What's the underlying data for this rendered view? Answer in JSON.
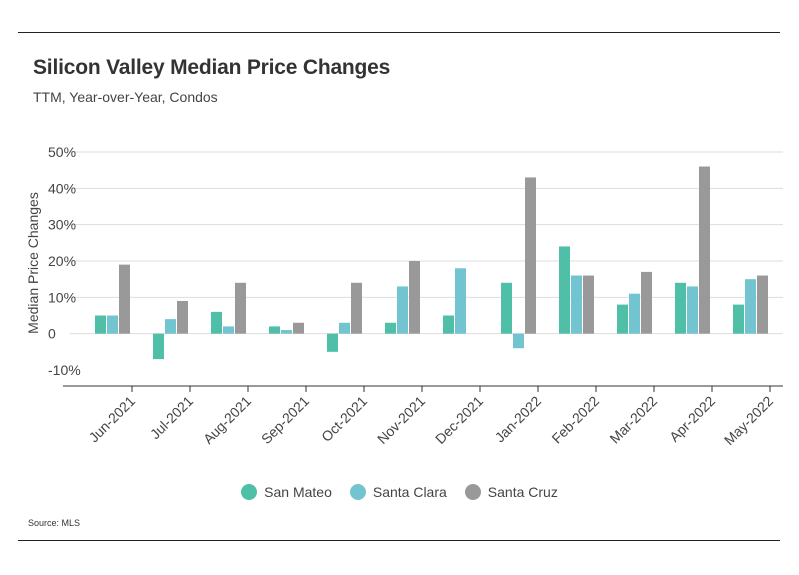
{
  "header": {
    "title": "Silicon Valley Median Price Changes",
    "subtitle": "TTM, Year-over-Year, Condos"
  },
  "footer": {
    "source": "Source:  MLS"
  },
  "chart_data": {
    "type": "bar",
    "title": "Silicon Valley Median Price Changes",
    "subtitle": "TTM, Year-over-Year, Condos",
    "xlabel": "",
    "ylabel": "Median Price Changes",
    "ylim": [
      -10,
      50
    ],
    "yticks": [
      50,
      40,
      30,
      20,
      10,
      0,
      -10
    ],
    "ytick_labels": [
      "50%",
      "40%",
      "30%",
      "20%",
      "10%",
      "0",
      "-10%"
    ],
    "grid": true,
    "legend_position": "bottom",
    "categories": [
      "Jun-2021",
      "Jul-2021",
      "Aug-2021",
      "Sep-2021",
      "Oct-2021",
      "Nov-2021",
      "Dec-2021",
      "Jan-2022",
      "Feb-2022",
      "Mar-2022",
      "Apr-2022",
      "May-2022"
    ],
    "series": [
      {
        "name": "San Mateo",
        "color": "#4fbfa8",
        "values": [
          5,
          -7,
          6,
          2,
          -5,
          3,
          5,
          14,
          24,
          8,
          14,
          8
        ]
      },
      {
        "name": "Santa Clara",
        "color": "#72c4d0",
        "values": [
          5,
          4,
          2,
          1,
          3,
          13,
          18,
          -4,
          16,
          11,
          13,
          15
        ]
      },
      {
        "name": "Santa Cruz",
        "color": "#999999",
        "values": [
          19,
          9,
          14,
          3,
          14,
          20,
          null,
          43,
          16,
          17,
          46,
          16
        ]
      }
    ]
  }
}
